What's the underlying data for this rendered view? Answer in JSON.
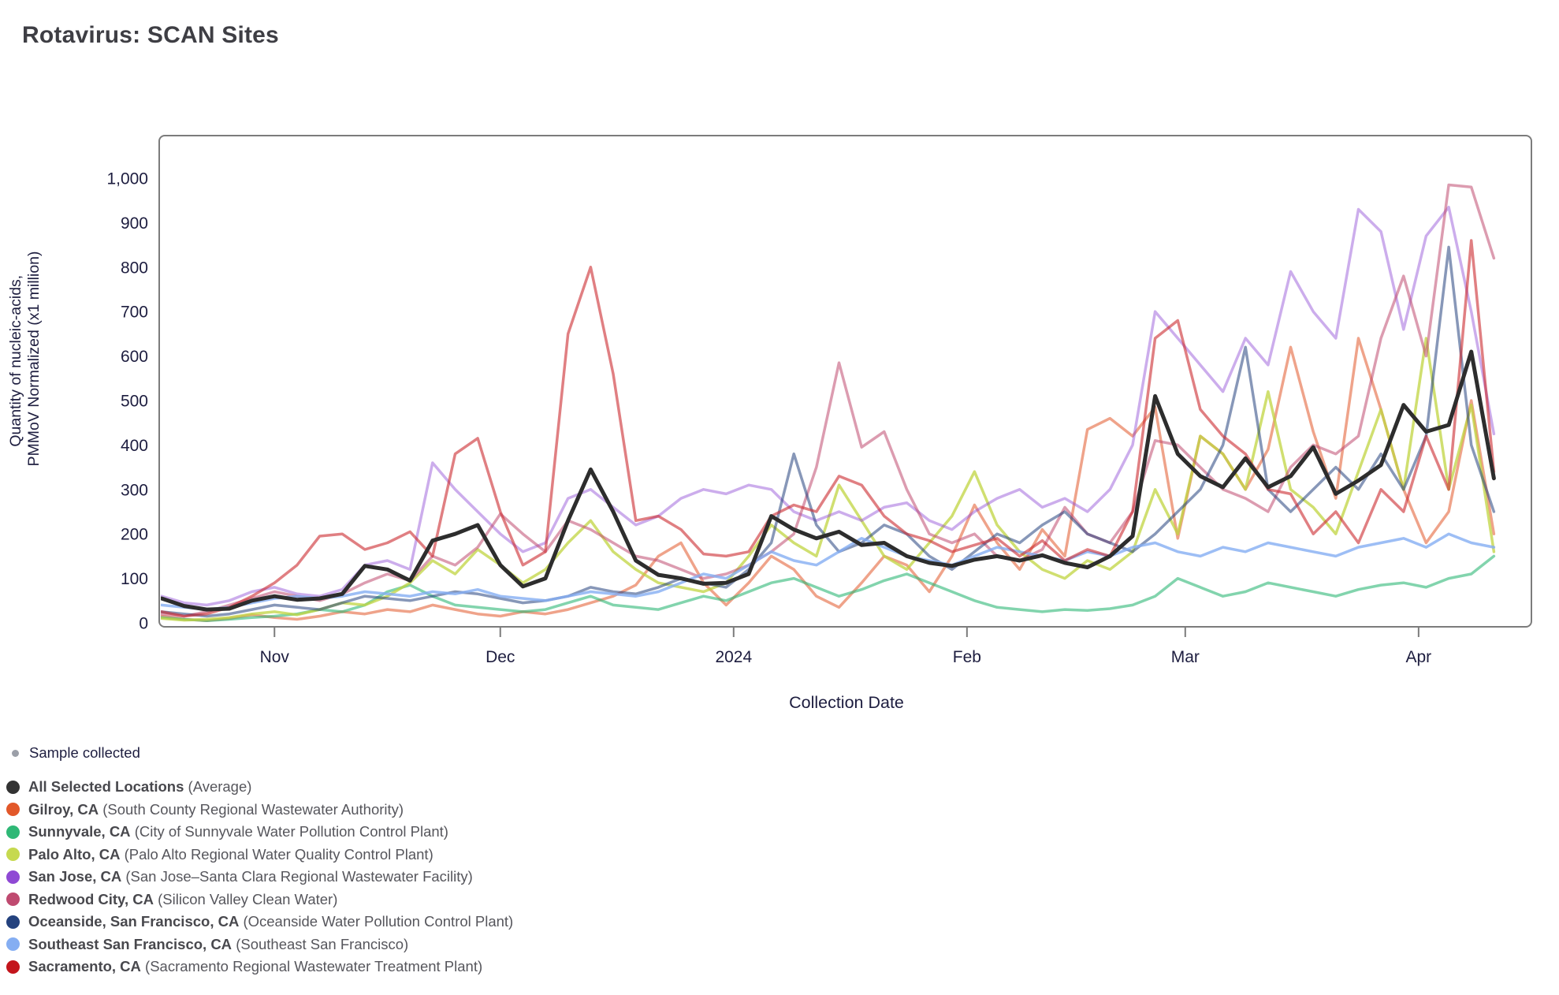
{
  "title": "Rotavirus: SCAN Sites",
  "axes": {
    "xlabel": "Collection Date",
    "ylabel_line1": "Quantity of nucleic-acids,",
    "ylabel_line2": "PMMoV Normalized (x1 million)"
  },
  "sample_legend": {
    "label": "Sample collected",
    "dot_color": "#9b9fa8"
  },
  "chart_data": {
    "type": "line",
    "title": "Rotavirus: SCAN Sites",
    "xlabel": "Collection Date",
    "ylabel": "Quantity of nucleic-acids, PMMoV Normalized (x1 million)",
    "x_start_date": "2023-10-17",
    "x_step_days": 3,
    "x_domain_days": [
      0,
      182
    ],
    "ylim": [
      0,
      1050
    ],
    "y_ticks": [
      0,
      100,
      200,
      300,
      400,
      500,
      600,
      700,
      800,
      900,
      1000
    ],
    "x_ticks": [
      {
        "day": 15,
        "label": "Nov"
      },
      {
        "day": 45,
        "label": "Dec"
      },
      {
        "day": 76,
        "label": "2024"
      },
      {
        "day": 107,
        "label": "Feb"
      },
      {
        "day": 136,
        "label": "Mar"
      },
      {
        "day": 167,
        "label": "Apr"
      }
    ],
    "grid": false,
    "legend_position": "bottom-left",
    "series": [
      {
        "name": "All Selected Locations",
        "detail": "(Average)",
        "dot_color": "#333333",
        "line_color": "#2d2d2d",
        "line_opacity": 1.0,
        "line_width": 5,
        "values": [
          55,
          38,
          30,
          32,
          50,
          60,
          52,
          55,
          65,
          128,
          120,
          95,
          185,
          200,
          220,
          130,
          82,
          100,
          230,
          345,
          250,
          140,
          108,
          100,
          88,
          90,
          110,
          240,
          210,
          190,
          205,
          175,
          180,
          150,
          135,
          128,
          142,
          150,
          140,
          152,
          135,
          125,
          150,
          195,
          510,
          380,
          330,
          305,
          370,
          305,
          330,
          395,
          290,
          320,
          355,
          490,
          430,
          445,
          610,
          325
        ]
      },
      {
        "name": "Gilroy, CA",
        "detail": "(South County Regional Wastewater Authority)",
        "dot_color": "#E2582A",
        "line_color": "#E2582A",
        "line_opacity": 0.55,
        "line_width": 3.5,
        "values": [
          15,
          8,
          5,
          10,
          18,
          12,
          8,
          15,
          25,
          20,
          30,
          25,
          40,
          30,
          20,
          15,
          25,
          20,
          30,
          45,
          60,
          85,
          150,
          180,
          90,
          40,
          90,
          150,
          120,
          60,
          35,
          90,
          150,
          130,
          70,
          150,
          265,
          180,
          120,
          210,
          150,
          435,
          460,
          420,
          485,
          190,
          420,
          380,
          300,
          390,
          620,
          430,
          280,
          640,
          480,
          300,
          180,
          250,
          500,
          200
        ]
      },
      {
        "name": "Sunnyvale, CA",
        "detail": "(City of Sunnyvale Water Pollution Control Plant)",
        "dot_color": "#2FB876",
        "line_color": "#2FB876",
        "line_opacity": 0.6,
        "line_width": 3.5,
        "values": [
          12,
          8,
          5,
          8,
          12,
          15,
          20,
          30,
          25,
          40,
          70,
          85,
          60,
          40,
          35,
          30,
          25,
          30,
          45,
          60,
          40,
          35,
          30,
          45,
          60,
          50,
          70,
          90,
          100,
          80,
          60,
          75,
          95,
          110,
          90,
          70,
          50,
          35,
          30,
          25,
          30,
          28,
          32,
          40,
          60,
          100,
          80,
          60,
          70,
          90,
          80,
          70,
          60,
          75,
          85,
          90,
          80,
          100,
          110,
          150
        ]
      },
      {
        "name": "Palo Alto, CA",
        "detail": "(Palo Alto Regional Water Quality Control Plant)",
        "dot_color": "#C6D94F",
        "line_color": "#C0D440",
        "line_opacity": 0.75,
        "line_width": 3.5,
        "values": [
          10,
          6,
          8,
          12,
          20,
          25,
          18,
          30,
          45,
          40,
          60,
          90,
          140,
          110,
          165,
          130,
          90,
          120,
          180,
          230,
          160,
          120,
          90,
          80,
          70,
          90,
          150,
          220,
          180,
          150,
          310,
          230,
          150,
          120,
          180,
          240,
          340,
          220,
          160,
          120,
          100,
          140,
          120,
          160,
          300,
          200,
          420,
          380,
          300,
          520,
          300,
          260,
          200,
          340,
          480,
          300,
          640,
          300,
          490,
          160
        ]
      },
      {
        "name": "San Jose, CA",
        "detail": "(San Jose–Santa Clara Regional Wastewater Facility)",
        "dot_color": "#8F49D4",
        "line_color": "#8F49D4",
        "line_opacity": 0.45,
        "line_width": 3.5,
        "values": [
          60,
          45,
          40,
          50,
          70,
          80,
          65,
          60,
          75,
          130,
          140,
          120,
          360,
          300,
          250,
          200,
          160,
          180,
          280,
          300,
          260,
          220,
          240,
          280,
          300,
          290,
          310,
          300,
          250,
          230,
          250,
          230,
          260,
          270,
          230,
          210,
          250,
          280,
          300,
          260,
          280,
          250,
          300,
          400,
          700,
          640,
          580,
          520,
          640,
          580,
          790,
          700,
          640,
          930,
          880,
          660,
          870,
          935,
          700,
          425
        ]
      },
      {
        "name": "Redwood City, CA",
        "detail": "(Silicon Valley Clean Water)",
        "dot_color": "#BF4A70",
        "line_color": "#BF4A70",
        "line_opacity": 0.55,
        "line_width": 3.5,
        "values": [
          20,
          15,
          25,
          40,
          55,
          70,
          60,
          50,
          65,
          90,
          110,
          95,
          150,
          130,
          170,
          245,
          200,
          160,
          230,
          210,
          180,
          150,
          140,
          120,
          100,
          110,
          130,
          160,
          200,
          350,
          585,
          395,
          430,
          300,
          200,
          180,
          200,
          150,
          140,
          165,
          260,
          200,
          180,
          250,
          410,
          400,
          350,
          300,
          280,
          250,
          350,
          400,
          380,
          420,
          640,
          780,
          600,
          985,
          980,
          820
        ]
      },
      {
        "name": "Oceanside, San Francisco, CA",
        "detail": "(Oceanside Water Pollution Control Plant)",
        "dot_color": "#24427E",
        "line_color": "#24427E",
        "line_opacity": 0.55,
        "line_width": 3.5,
        "values": [
          25,
          20,
          15,
          20,
          30,
          40,
          35,
          30,
          45,
          60,
          55,
          50,
          60,
          70,
          65,
          55,
          45,
          50,
          60,
          80,
          70,
          65,
          80,
          100,
          90,
          80,
          120,
          180,
          380,
          220,
          160,
          180,
          220,
          200,
          150,
          120,
          160,
          200,
          180,
          220,
          250,
          200,
          180,
          160,
          200,
          250,
          300,
          400,
          620,
          300,
          250,
          300,
          350,
          300,
          380,
          300,
          420,
          845,
          400,
          250
        ]
      },
      {
        "name": "Southeast San Francisco, CA",
        "detail": "(Southeast San Francisco)",
        "dot_color": "#85AEF2",
        "line_color": "#85AEF2",
        "line_opacity": 0.8,
        "line_width": 3.5,
        "values": [
          40,
          35,
          30,
          35,
          45,
          55,
          60,
          55,
          60,
          70,
          65,
          60,
          70,
          65,
          75,
          60,
          55,
          50,
          60,
          70,
          65,
          60,
          70,
          90,
          110,
          100,
          130,
          160,
          140,
          130,
          160,
          190,
          170,
          150,
          140,
          130,
          150,
          170,
          160,
          150,
          140,
          160,
          150,
          170,
          180,
          160,
          150,
          170,
          160,
          180,
          170,
          160,
          150,
          170,
          180,
          190,
          170,
          200,
          180,
          170
        ]
      },
      {
        "name": "Sacramento, CA",
        "detail": "(Sacramento Regional Wastewater Treatment Plant)",
        "dot_color": "#C3151C",
        "line_color": "#CC2A2F",
        "line_opacity": 0.6,
        "line_width": 3.5,
        "values": [
          25,
          15,
          20,
          35,
          60,
          90,
          130,
          195,
          200,
          165,
          180,
          205,
          150,
          380,
          415,
          250,
          130,
          160,
          650,
          800,
          560,
          230,
          240,
          210,
          155,
          150,
          160,
          240,
          265,
          250,
          330,
          310,
          240,
          200,
          185,
          160,
          175,
          190,
          150,
          185,
          140,
          165,
          150,
          250,
          640,
          680,
          480,
          420,
          380,
          300,
          290,
          200,
          250,
          180,
          300,
          250,
          420,
          300,
          860,
          340
        ]
      }
    ]
  }
}
